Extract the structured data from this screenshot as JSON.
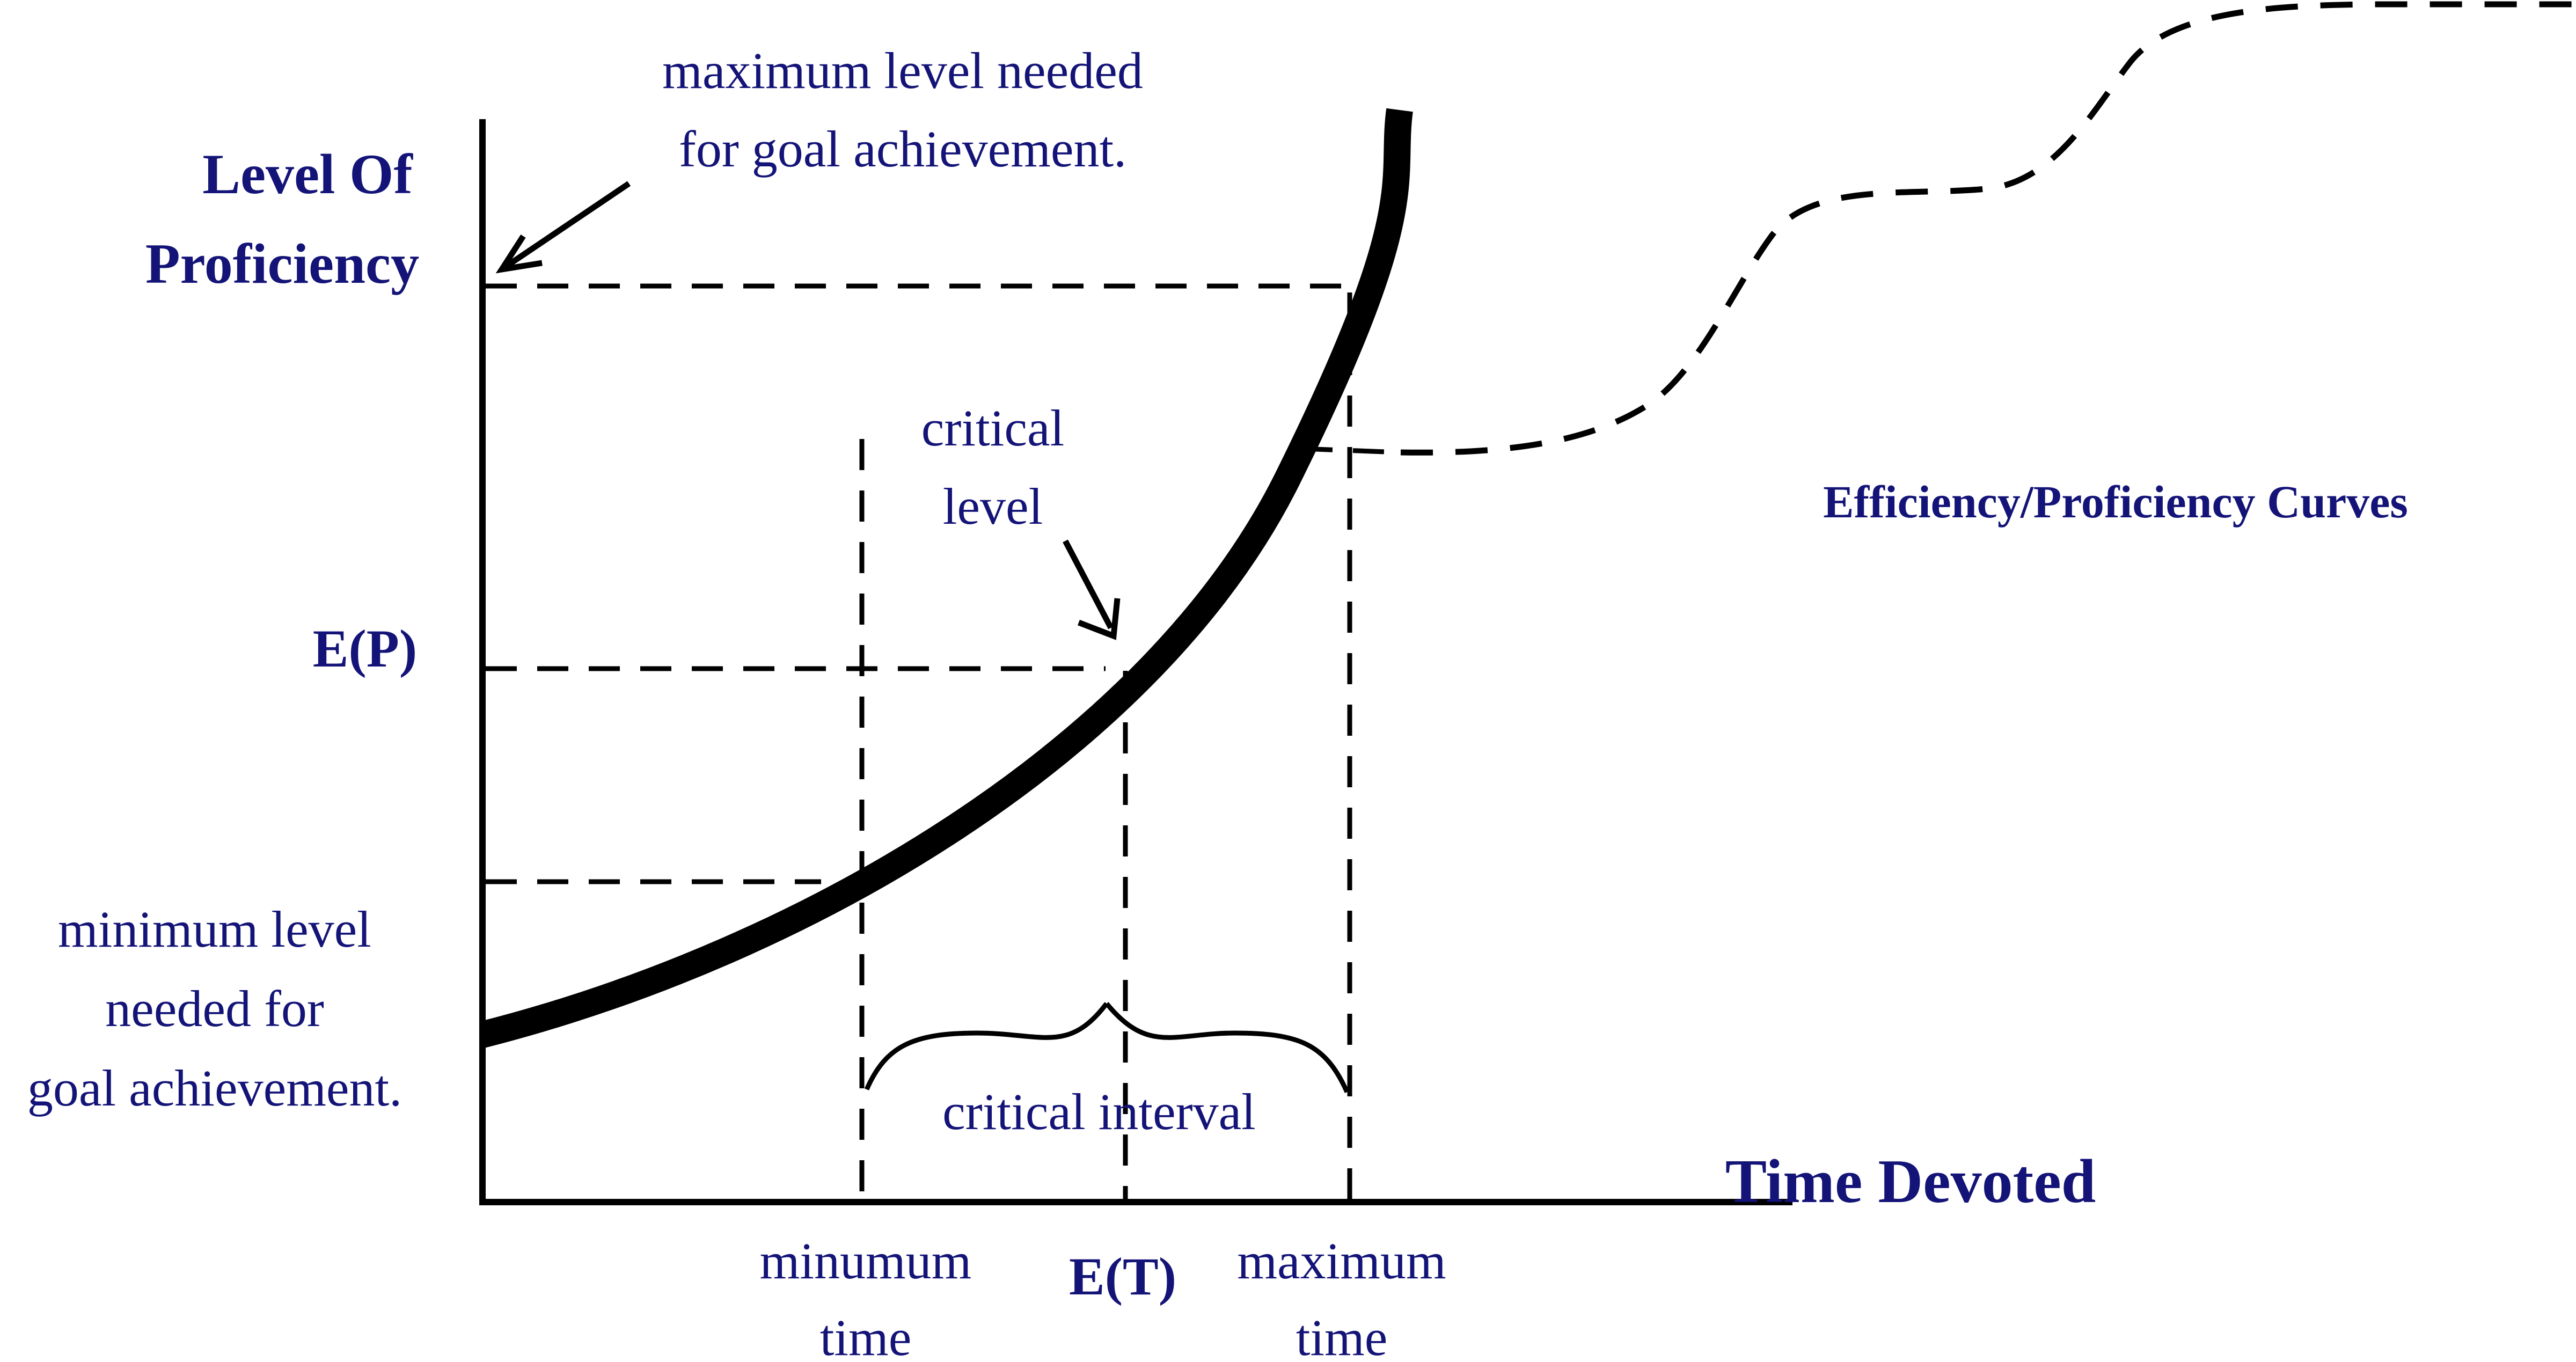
{
  "y_axis": {
    "title_line1": "Level Of",
    "title_line2": "Proficiency",
    "ep_label": "E(P)"
  },
  "x_axis": {
    "title": "Time Devoted",
    "et_label": "E(T)",
    "min_time_line1": "minumum",
    "min_time_line2": "time",
    "max_time_line1": "maximum",
    "max_time_line2": "time"
  },
  "annotations": {
    "max_level_line1": "maximum level needed",
    "max_level_line2": "for goal achievement.",
    "min_level_line1": "minimum level",
    "min_level_line2": "needed for",
    "min_level_line3": "goal achievement.",
    "critical_level_line1": "critical",
    "critical_level_line2": "level",
    "critical_interval": "critical interval",
    "curves_label": "Efficiency/Proficiency Curves"
  }
}
